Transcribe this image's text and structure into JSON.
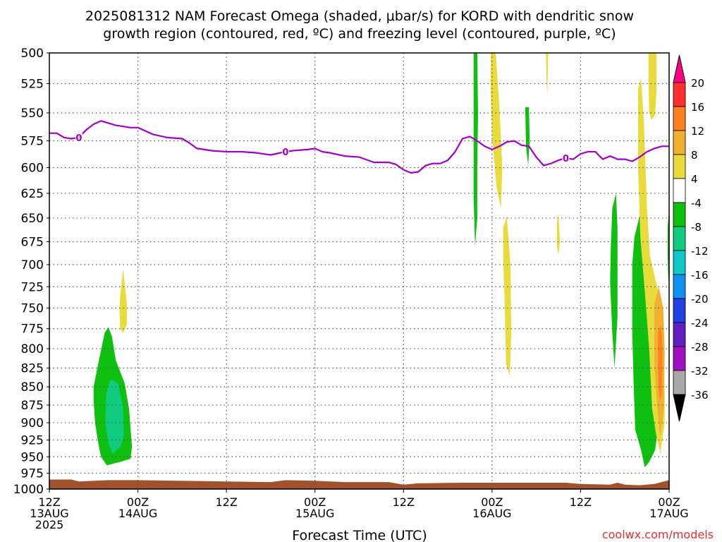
{
  "chart_data": {
    "type": "heatmap",
    "title": "2025081312 NAM Forecast Omega (shaded, μbar/s) for KORD with dendritic snow growth region (contoured, red, ºC) and freezing level (contoured, purple, ºC)",
    "title_line1": "2025081312 NAM Forecast Omega (shaded, μbar/s) for KORD with dendritic snow",
    "title_line2": "growth region (contoured, red, ºC) and freezing level (contoured, purple, ºC)",
    "xlabel": "Forecast Time (UTC)",
    "ylabel": "",
    "x_unit": "hours after 2025-08-13 12Z",
    "xlim": [
      0,
      84
    ],
    "ylim": [
      1000,
      500
    ],
    "grid": true,
    "x_ticks": [
      {
        "x": 0,
        "label1": "12Z",
        "label2": "13AUG",
        "label3": "2025"
      },
      {
        "x": 12,
        "label1": "00Z",
        "label2": "14AUG",
        "label3": ""
      },
      {
        "x": 24,
        "label1": "12Z",
        "label2": "",
        "label3": ""
      },
      {
        "x": 36,
        "label1": "00Z",
        "label2": "15AUG",
        "label3": ""
      },
      {
        "x": 48,
        "label1": "12Z",
        "label2": "",
        "label3": ""
      },
      {
        "x": 60,
        "label1": "00Z",
        "label2": "16AUG",
        "label3": ""
      },
      {
        "x": 72,
        "label1": "12Z",
        "label2": "",
        "label3": ""
      },
      {
        "x": 84,
        "label1": "00Z",
        "label2": "17AUG",
        "label3": ""
      }
    ],
    "y_ticks": [
      "500",
      "525",
      "550",
      "575",
      "600",
      "625",
      "650",
      "675",
      "700",
      "725",
      "750",
      "775",
      "800",
      "825",
      "850",
      "875",
      "900",
      "925",
      "950",
      "975",
      "1000"
    ],
    "y_values": [
      500,
      525,
      550,
      575,
      600,
      625,
      650,
      675,
      700,
      725,
      750,
      775,
      800,
      825,
      850,
      875,
      900,
      925,
      950,
      975,
      1000
    ],
    "colorbar": {
      "labels": [
        "20",
        "16",
        "12",
        "8",
        "4",
        "-4",
        "-8",
        "-12",
        "-16",
        "-20",
        "-24",
        "-28",
        "-32",
        "-36"
      ],
      "colors": [
        "#ff0080",
        "#ff3030",
        "#ff8020",
        "#f2b030",
        "#e8dc3c",
        "#ffffff",
        "#10c010",
        "#10cc80",
        "#10c8c8",
        "#1090f0",
        "#2040e0",
        "#6020c0",
        "#a010c0",
        "#a8a8a8",
        "#000000"
      ]
    },
    "freezing_level": {
      "contour_label": "0",
      "label_at_x": [
        4,
        32,
        70
      ],
      "color": "#a000c8",
      "points": [
        [
          0,
          568
        ],
        [
          1,
          568
        ],
        [
          2,
          572
        ],
        [
          3,
          573
        ],
        [
          4,
          572
        ],
        [
          5,
          565
        ],
        [
          6,
          560
        ],
        [
          7,
          557
        ],
        [
          8,
          559
        ],
        [
          9,
          561
        ],
        [
          10,
          562
        ],
        [
          11,
          563
        ],
        [
          12,
          563
        ],
        [
          13,
          566
        ],
        [
          14,
          569
        ],
        [
          16,
          572
        ],
        [
          18,
          573
        ],
        [
          19,
          577
        ],
        [
          20,
          582
        ],
        [
          21,
          583
        ],
        [
          22,
          584
        ],
        [
          24,
          585
        ],
        [
          26,
          585
        ],
        [
          28,
          586
        ],
        [
          30,
          588
        ],
        [
          32,
          585
        ],
        [
          33,
          584
        ],
        [
          35,
          583
        ],
        [
          36,
          582
        ],
        [
          37,
          585
        ],
        [
          38,
          586
        ],
        [
          40,
          589
        ],
        [
          42,
          590
        ],
        [
          44,
          595
        ],
        [
          46,
          595
        ],
        [
          47,
          597
        ],
        [
          48,
          602
        ],
        [
          49,
          605
        ],
        [
          50,
          604
        ],
        [
          51,
          598
        ],
        [
          52,
          596
        ],
        [
          53,
          596
        ],
        [
          54,
          593
        ],
        [
          55,
          585
        ],
        [
          56,
          573
        ],
        [
          57,
          571
        ],
        [
          58,
          575
        ],
        [
          59,
          580
        ],
        [
          60,
          583
        ],
        [
          61,
          580
        ],
        [
          62,
          576
        ],
        [
          63,
          575
        ],
        [
          64,
          579
        ],
        [
          65,
          580
        ],
        [
          66,
          590
        ],
        [
          67,
          598
        ],
        [
          68,
          596
        ],
        [
          69,
          593
        ],
        [
          70,
          591
        ],
        [
          71,
          592
        ],
        [
          72,
          587
        ],
        [
          73,
          585
        ],
        [
          74,
          585
        ],
        [
          75,
          592
        ],
        [
          76,
          589
        ],
        [
          77,
          592
        ],
        [
          78,
          592
        ],
        [
          79,
          594
        ],
        [
          80,
          590
        ],
        [
          81,
          585
        ],
        [
          82,
          582
        ],
        [
          83,
          580
        ],
        [
          84,
          580
        ]
      ]
    },
    "omega_regions": [
      {
        "color": "#10c010",
        "points": [
          [
            6,
            850
          ],
          [
            6.6,
            820
          ],
          [
            7.5,
            780
          ],
          [
            8,
            773
          ],
          [
            8.5,
            785
          ],
          [
            9,
            815
          ],
          [
            10.2,
            845
          ],
          [
            10.8,
            880
          ],
          [
            11.2,
            935
          ],
          [
            11,
            953
          ],
          [
            9.5,
            958
          ],
          [
            7.8,
            963
          ],
          [
            7,
            950
          ],
          [
            6.6,
            928
          ],
          [
            6.2,
            900
          ],
          [
            6,
            870
          ]
        ]
      },
      {
        "color": "#10cc80",
        "points": [
          [
            7.7,
            860
          ],
          [
            8.3,
            840
          ],
          [
            9.3,
            845
          ],
          [
            10,
            880
          ],
          [
            10.1,
            920
          ],
          [
            9.6,
            935
          ],
          [
            8.6,
            945
          ],
          [
            8,
            930
          ],
          [
            7.6,
            900
          ]
        ]
      },
      {
        "color": "#e8dc3c",
        "points": [
          [
            9.6,
            735
          ],
          [
            10,
            705
          ],
          [
            10.5,
            745
          ],
          [
            10.5,
            770
          ],
          [
            10,
            780
          ],
          [
            9.6,
            775
          ],
          [
            9.5,
            752
          ]
        ]
      },
      {
        "color": "#10c010",
        "points": [
          [
            57.5,
            500
          ],
          [
            58,
            500
          ],
          [
            58.1,
            550
          ],
          [
            58,
            600
          ],
          [
            58,
            650
          ],
          [
            57.7,
            680
          ],
          [
            57.5,
            630
          ],
          [
            57.5,
            560
          ]
        ]
      },
      {
        "color": "#e8dc3c",
        "points": [
          [
            59.8,
            500
          ],
          [
            60.5,
            500
          ],
          [
            61,
            545
          ],
          [
            61.4,
            600
          ],
          [
            61.2,
            640
          ],
          [
            60.6,
            618
          ],
          [
            60,
            570
          ],
          [
            59.8,
            530
          ]
        ]
      },
      {
        "color": "#10c010",
        "points": [
          [
            64.5,
            545
          ],
          [
            65,
            545
          ],
          [
            65.1,
            575
          ],
          [
            64.9,
            598
          ],
          [
            64.6,
            580
          ]
        ]
      },
      {
        "color": "#e8dc3c",
        "points": [
          [
            67.3,
            500
          ],
          [
            67.6,
            500
          ],
          [
            67.5,
            535
          ],
          [
            67.4,
            525
          ]
        ]
      },
      {
        "color": "#e8dc3c",
        "points": [
          [
            61.5,
            660
          ],
          [
            62,
            648
          ],
          [
            62.5,
            700
          ],
          [
            62.6,
            780
          ],
          [
            62.4,
            835
          ],
          [
            61.9,
            820
          ],
          [
            61.7,
            740
          ],
          [
            61.5,
            690
          ]
        ]
      },
      {
        "color": "#e8dc3c",
        "points": [
          [
            68.8,
            655
          ],
          [
            69,
            645
          ],
          [
            69.2,
            675
          ],
          [
            69,
            690
          ],
          [
            68.8,
            680
          ]
        ]
      },
      {
        "color": "#10c010",
        "points": [
          [
            76.3,
            640
          ],
          [
            76.8,
            625
          ],
          [
            77,
            660
          ],
          [
            77,
            760
          ],
          [
            76.6,
            825
          ],
          [
            76.3,
            780
          ],
          [
            76,
            720
          ],
          [
            76.1,
            680
          ]
        ]
      },
      {
        "color": "#10c010",
        "points": [
          [
            79,
            700
          ],
          [
            79.3,
            670
          ],
          [
            80,
            648
          ],
          [
            80.6,
            640
          ],
          [
            81.2,
            690
          ],
          [
            81.5,
            770
          ],
          [
            82.2,
            820
          ],
          [
            82.6,
            900
          ],
          [
            82.1,
            940
          ],
          [
            81.3,
            958
          ],
          [
            80.7,
            966
          ],
          [
            80.2,
            940
          ],
          [
            79.4,
            910
          ],
          [
            79.2,
            850
          ],
          [
            79,
            780
          ]
        ]
      },
      {
        "color": "#e8dc3c",
        "points": [
          [
            79.8,
            530
          ],
          [
            80.2,
            520
          ],
          [
            80.6,
            560
          ],
          [
            81,
            640
          ],
          [
            81.4,
            690
          ],
          [
            82.5,
            730
          ],
          [
            83.2,
            780
          ],
          [
            83.4,
            860
          ],
          [
            83.4,
            900
          ],
          [
            82.8,
            945
          ],
          [
            82.2,
            915
          ],
          [
            81.7,
            880
          ],
          [
            81.3,
            800
          ],
          [
            80.7,
            730
          ],
          [
            80.1,
            670
          ],
          [
            79.8,
            600
          ]
        ]
      },
      {
        "color": "#f2b030",
        "points": [
          [
            82,
            745
          ],
          [
            82.6,
            725
          ],
          [
            83.2,
            750
          ],
          [
            83.4,
            800
          ],
          [
            83.3,
            880
          ],
          [
            82.8,
            920
          ],
          [
            82.4,
            880
          ],
          [
            82,
            820
          ]
        ]
      },
      {
        "color": "#ff8020",
        "points": [
          [
            82.5,
            780
          ],
          [
            82.9,
            770
          ],
          [
            83.1,
            800
          ],
          [
            83,
            860
          ],
          [
            82.8,
            870
          ],
          [
            82.6,
            850
          ],
          [
            82.5,
            820
          ]
        ]
      },
      {
        "color": "#e8dc3c",
        "points": [
          [
            81.2,
            500
          ],
          [
            82.3,
            500
          ],
          [
            82.3,
            530
          ],
          [
            82.1,
            552
          ],
          [
            81.6,
            556
          ],
          [
            81.3,
            550
          ],
          [
            81.2,
            520
          ]
        ]
      },
      {
        "color": "#10c010",
        "points": [
          [
            83.8,
            660
          ],
          [
            84,
            640
          ],
          [
            84,
            700
          ],
          [
            83.9,
            720
          ],
          [
            83.8,
            690
          ]
        ]
      }
    ],
    "terrain": {
      "color": "#a0522d",
      "points": [
        [
          0,
          985
        ],
        [
          3,
          985
        ],
        [
          4,
          988
        ],
        [
          8,
          986
        ],
        [
          12,
          986
        ],
        [
          18,
          987
        ],
        [
          24,
          988
        ],
        [
          30,
          989
        ],
        [
          32,
          986
        ],
        [
          36,
          987
        ],
        [
          40,
          989
        ],
        [
          46,
          989
        ],
        [
          48,
          993
        ],
        [
          50,
          991
        ],
        [
          56,
          990
        ],
        [
          60,
          990
        ],
        [
          66,
          990
        ],
        [
          70,
          990
        ],
        [
          72,
          992
        ],
        [
          76,
          993
        ],
        [
          77,
          990
        ],
        [
          78,
          993
        ],
        [
          80,
          994
        ],
        [
          82,
          992
        ],
        [
          84,
          986
        ]
      ]
    }
  },
  "watermark": "coolwx.com/models"
}
